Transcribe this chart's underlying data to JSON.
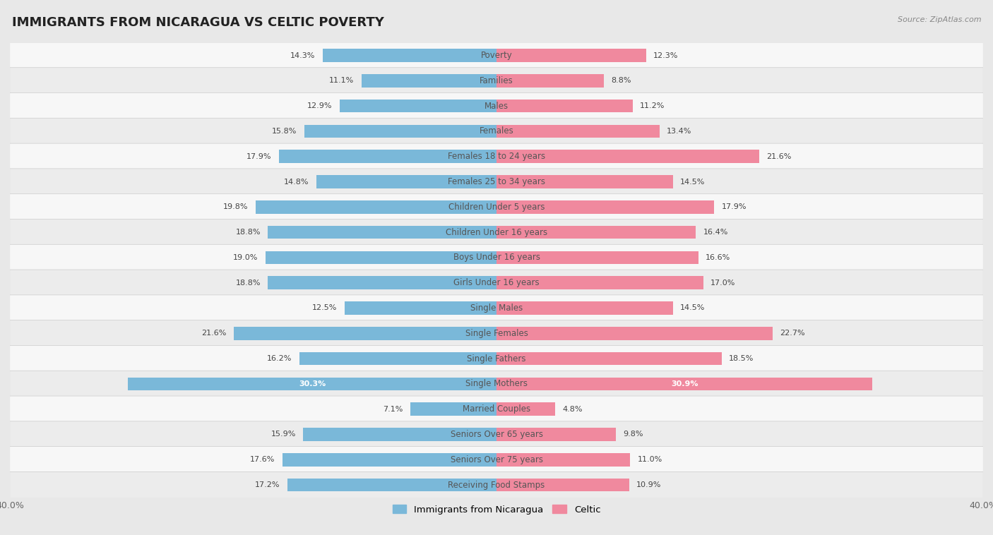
{
  "title": "IMMIGRANTS FROM NICARAGUA VS CELTIC POVERTY",
  "source": "Source: ZipAtlas.com",
  "categories": [
    "Poverty",
    "Families",
    "Males",
    "Females",
    "Females 18 to 24 years",
    "Females 25 to 34 years",
    "Children Under 5 years",
    "Children Under 16 years",
    "Boys Under 16 years",
    "Girls Under 16 years",
    "Single Males",
    "Single Females",
    "Single Fathers",
    "Single Mothers",
    "Married Couples",
    "Seniors Over 65 years",
    "Seniors Over 75 years",
    "Receiving Food Stamps"
  ],
  "nicaragua_values": [
    14.3,
    11.1,
    12.9,
    15.8,
    17.9,
    14.8,
    19.8,
    18.8,
    19.0,
    18.8,
    12.5,
    21.6,
    16.2,
    30.3,
    7.1,
    15.9,
    17.6,
    17.2
  ],
  "celtic_values": [
    12.3,
    8.8,
    11.2,
    13.4,
    21.6,
    14.5,
    17.9,
    16.4,
    16.6,
    17.0,
    14.5,
    22.7,
    18.5,
    30.9,
    4.8,
    9.8,
    11.0,
    10.9
  ],
  "nicaragua_color": "#7ab8d9",
  "celtic_color": "#f0899e",
  "bg_outer": "#e8e8e8",
  "row_color_odd": "#f7f7f7",
  "row_color_even": "#ececec",
  "xlim": 40.0,
  "legend_label_nicaragua": "Immigrants from Nicaragua",
  "legend_label_celtic": "Celtic",
  "title_fontsize": 13,
  "label_fontsize": 8.5,
  "value_fontsize": 8.0,
  "bar_height": 0.52
}
